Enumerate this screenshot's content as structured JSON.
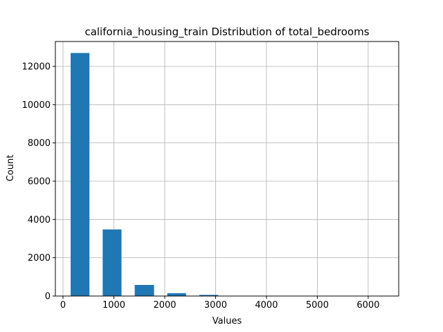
{
  "chart_data": {
    "type": "bar",
    "title": "california_housing_train Distribution of total_bedrooms",
    "xlabel": "Values",
    "ylabel": "Count",
    "xlim": [
      -150,
      6600
    ],
    "ylim": [
      0,
      13300
    ],
    "xticks": [
      0,
      1000,
      2000,
      3000,
      4000,
      5000,
      6000
    ],
    "yticks": [
      0,
      2000,
      4000,
      6000,
      8000,
      10000,
      12000
    ],
    "grid": true,
    "bar_color": "#1f77b4",
    "bars": [
      {
        "x0": 150,
        "x1": 520,
        "value": 12700
      },
      {
        "x0": 780,
        "x1": 1150,
        "value": 3480
      },
      {
        "x0": 1410,
        "x1": 1790,
        "value": 580
      },
      {
        "x0": 2050,
        "x1": 2420,
        "value": 150
      },
      {
        "x0": 2680,
        "x1": 3050,
        "value": 60
      },
      {
        "x0": 3320,
        "x1": 3690,
        "value": 15
      },
      {
        "x0": 3950,
        "x1": 4320,
        "value": 8
      },
      {
        "x0": 4580,
        "x1": 4960,
        "value": 5
      },
      {
        "x0": 5220,
        "x1": 5590,
        "value": 3
      },
      {
        "x0": 5850,
        "x1": 6220,
        "value": 2
      }
    ]
  }
}
